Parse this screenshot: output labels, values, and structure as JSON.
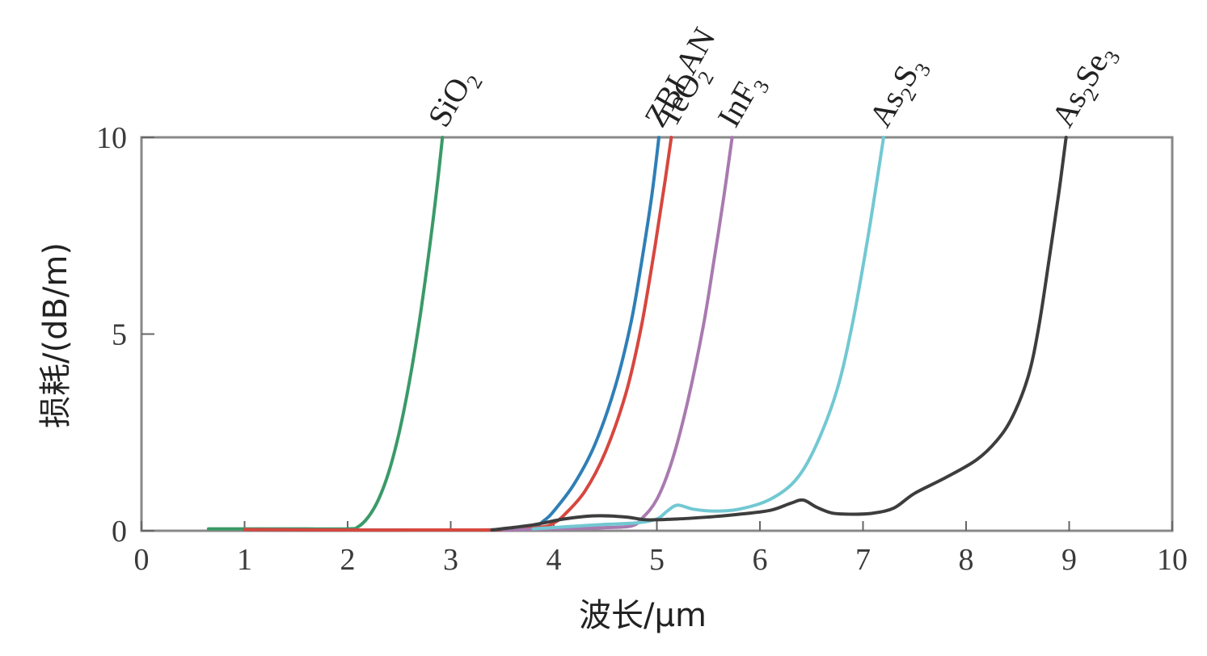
{
  "chart_data": {
    "type": "line",
    "title": "",
    "xlabel": "波长/μm",
    "ylabel": "损耗/(dB/m)",
    "xlim": [
      0,
      10
    ],
    "ylim": [
      0,
      10
    ],
    "xticks": [
      "0",
      "1",
      "2",
      "3",
      "4",
      "5",
      "6",
      "7",
      "8",
      "9",
      "10"
    ],
    "yticks": [
      "0",
      "5",
      "10"
    ],
    "grid": false,
    "legend": "labels at top of each curve, rotated",
    "series": [
      {
        "name": "SiO2",
        "label_main": "SiO",
        "label_sub": "2",
        "color": "#3a9a68",
        "points": [
          [
            0.65,
            0.05
          ],
          [
            1.0,
            0.05
          ],
          [
            1.5,
            0.05
          ],
          [
            2.0,
            0.05
          ],
          [
            2.1,
            0.1
          ],
          [
            2.2,
            0.35
          ],
          [
            2.3,
            0.8
          ],
          [
            2.4,
            1.5
          ],
          [
            2.5,
            2.5
          ],
          [
            2.6,
            3.8
          ],
          [
            2.7,
            5.4
          ],
          [
            2.8,
            7.3
          ],
          [
            2.87,
            8.8
          ],
          [
            2.92,
            10.0
          ]
        ]
      },
      {
        "name": "ZBLAN",
        "label_main": "ZBLAN",
        "label_sub": "",
        "color": "#2f7fb6",
        "points": [
          [
            1.0,
            0.03
          ],
          [
            2.0,
            0.02
          ],
          [
            3.0,
            0.02
          ],
          [
            3.5,
            0.03
          ],
          [
            3.8,
            0.1
          ],
          [
            3.9,
            0.25
          ],
          [
            4.0,
            0.5
          ],
          [
            4.2,
            1.2
          ],
          [
            4.4,
            2.2
          ],
          [
            4.6,
            3.7
          ],
          [
            4.75,
            5.3
          ],
          [
            4.85,
            6.8
          ],
          [
            4.95,
            8.5
          ],
          [
            5.02,
            10.0
          ]
        ]
      },
      {
        "name": "TeO2",
        "label_main": "TeO",
        "label_sub": "2",
        "color": "#d6473f",
        "points": [
          [
            1.0,
            0.03
          ],
          [
            2.0,
            0.02
          ],
          [
            3.0,
            0.02
          ],
          [
            3.6,
            0.03
          ],
          [
            3.9,
            0.1
          ],
          [
            4.0,
            0.2
          ],
          [
            4.1,
            0.4
          ],
          [
            4.3,
            1.0
          ],
          [
            4.5,
            2.0
          ],
          [
            4.7,
            3.5
          ],
          [
            4.85,
            5.2
          ],
          [
            4.98,
            7.2
          ],
          [
            5.08,
            8.9
          ],
          [
            5.14,
            10.0
          ]
        ]
      },
      {
        "name": "InF3",
        "label_main": "InF",
        "label_sub": "3",
        "color": "#a97ab0",
        "points": [
          [
            3.5,
            0.02
          ],
          [
            4.0,
            0.05
          ],
          [
            4.5,
            0.08
          ],
          [
            4.75,
            0.12
          ],
          [
            4.85,
            0.3
          ],
          [
            5.0,
            0.8
          ],
          [
            5.15,
            1.8
          ],
          [
            5.3,
            3.3
          ],
          [
            5.45,
            5.2
          ],
          [
            5.55,
            6.8
          ],
          [
            5.65,
            8.5
          ],
          [
            5.73,
            10.0
          ]
        ]
      },
      {
        "name": "As2S3",
        "label_main": "As",
        "label_sub_1": "2",
        "label_main_2": "S",
        "label_sub": "3",
        "color": "#72c8d2",
        "points": [
          [
            3.8,
            0.05
          ],
          [
            4.4,
            0.15
          ],
          [
            4.8,
            0.2
          ],
          [
            5.0,
            0.3
          ],
          [
            5.1,
            0.5
          ],
          [
            5.2,
            0.65
          ],
          [
            5.35,
            0.55
          ],
          [
            5.55,
            0.5
          ],
          [
            5.8,
            0.55
          ],
          [
            6.1,
            0.8
          ],
          [
            6.35,
            1.3
          ],
          [
            6.55,
            2.2
          ],
          [
            6.75,
            3.6
          ],
          [
            6.9,
            5.3
          ],
          [
            7.05,
            7.5
          ],
          [
            7.2,
            10.0
          ]
        ]
      },
      {
        "name": "As2Se3",
        "label_main": "As",
        "label_sub_1": "2",
        "label_main_2": "Se",
        "label_sub": "3",
        "color": "#3d3d3d",
        "points": [
          [
            3.4,
            0.02
          ],
          [
            3.8,
            0.15
          ],
          [
            4.1,
            0.3
          ],
          [
            4.4,
            0.38
          ],
          [
            4.7,
            0.35
          ],
          [
            4.9,
            0.28
          ],
          [
            5.2,
            0.3
          ],
          [
            5.5,
            0.35
          ],
          [
            5.8,
            0.42
          ],
          [
            6.1,
            0.52
          ],
          [
            6.3,
            0.7
          ],
          [
            6.42,
            0.78
          ],
          [
            6.55,
            0.6
          ],
          [
            6.7,
            0.45
          ],
          [
            6.9,
            0.42
          ],
          [
            7.1,
            0.45
          ],
          [
            7.3,
            0.58
          ],
          [
            7.5,
            0.95
          ],
          [
            7.8,
            1.35
          ],
          [
            8.1,
            1.8
          ],
          [
            8.3,
            2.3
          ],
          [
            8.45,
            2.9
          ],
          [
            8.6,
            3.9
          ],
          [
            8.7,
            5.1
          ],
          [
            8.8,
            6.8
          ],
          [
            8.9,
            8.6
          ],
          [
            8.97,
            10.0
          ]
        ]
      }
    ]
  }
}
